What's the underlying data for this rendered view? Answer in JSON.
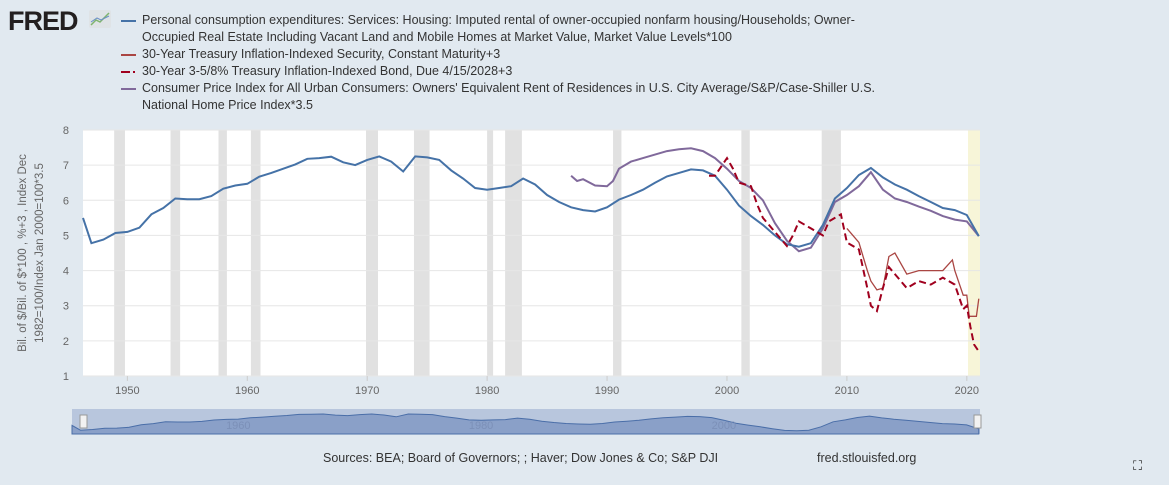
{
  "logo": "FRED",
  "legend": [
    {
      "lines": [
        "Personal consumption expenditures: Services: Housing: Imputed rental of owner-occupied nonfarm housing/Households; Owner-",
        "Occupied Real Estate Including Vacant Land and Mobile Homes at Market Value, Market Value Levels*100"
      ],
      "color": "#4572a7",
      "dash": false
    },
    {
      "lines": [
        "30-Year Treasury Inflation-Indexed Security, Constant Maturity+3"
      ],
      "color": "#aa4643",
      "dash": false
    },
    {
      "lines": [
        "30-Year 3-5/8% Treasury Inflation-Indexed Bond, Due 4/15/2028+3"
      ],
      "color": "#a0001e",
      "dash": true
    },
    {
      "lines": [
        "Consumer Price Index for All Urban Consumers: Owners' Equivalent Rent of Residences in U.S. City Average/S&P/Case-Shiller U.S.",
        "National Home Price Index*3.5"
      ],
      "color": "#80699b",
      "dash": false
    }
  ],
  "footer": {
    "sources": "Sources: BEA; Board of Governors; ; Haver; Dow Jones & Co; S&P DJI",
    "site": "fred.stlouisfed.org",
    "fullscreen_icon": "⛶"
  },
  "chart_data": {
    "type": "line",
    "ylabel_lines": [
      "Bil. of $/Bil. of $*100 , %+3 , Index Dec",
      "1982=100/Index Jan 2000=100*3.5"
    ],
    "ylim": [
      1,
      8
    ],
    "xlim": [
      1946.3,
      2021.1
    ],
    "yticks": [
      1,
      2,
      3,
      4,
      5,
      6,
      7,
      8
    ],
    "xticks": [
      1950,
      1960,
      1970,
      1980,
      1990,
      2000,
      2010,
      2020
    ],
    "navigator_labels": [
      1960,
      1980,
      2000
    ],
    "recessions": [
      [
        1948.9,
        1949.8
      ],
      [
        1953.6,
        1954.4
      ],
      [
        1957.6,
        1958.3
      ],
      [
        1960.3,
        1961.1
      ],
      [
        1969.9,
        1970.9
      ],
      [
        1973.9,
        1975.2
      ],
      [
        1980.0,
        1980.5
      ],
      [
        1981.5,
        1982.9
      ],
      [
        1990.5,
        1991.2
      ],
      [
        2001.2,
        2001.9
      ],
      [
        2007.9,
        2009.5
      ]
    ],
    "highlight": [
      2020.1,
      2021.1
    ],
    "series": [
      {
        "name": "PCE housing imputed rental / Households *100",
        "color": "#4572a7",
        "dash": false,
        "x": [
          1946.3,
          1947,
          1948,
          1949,
          1950,
          1951,
          1952,
          1953,
          1954,
          1955,
          1956,
          1957,
          1958,
          1959,
          1960,
          1961,
          1962,
          1963,
          1964,
          1965,
          1966,
          1967,
          1968,
          1969,
          1970,
          1971,
          1972,
          1973,
          1974,
          1975,
          1976,
          1977,
          1978,
          1979,
          1980,
          1981,
          1982,
          1983,
          1984,
          1985,
          1986,
          1987,
          1988,
          1989,
          1990,
          1991,
          1992,
          1993,
          1994,
          1995,
          1996,
          1997,
          1998,
          1999,
          2000,
          2001,
          2002,
          2003,
          2004,
          2005,
          2006,
          2007,
          2008,
          2009,
          2010,
          2011,
          2012,
          2013,
          2014,
          2015,
          2016,
          2017,
          2018,
          2019,
          2020,
          2021
        ],
        "y": [
          5.5,
          4.78,
          4.88,
          5.07,
          5.1,
          5.22,
          5.6,
          5.78,
          6.05,
          6.03,
          6.03,
          6.12,
          6.33,
          6.42,
          6.47,
          6.67,
          6.78,
          6.9,
          7.02,
          7.18,
          7.2,
          7.24,
          7.08,
          7.0,
          7.15,
          7.25,
          7.1,
          6.82,
          7.25,
          7.22,
          7.15,
          6.85,
          6.62,
          6.35,
          6.3,
          6.35,
          6.4,
          6.62,
          6.45,
          6.15,
          5.95,
          5.8,
          5.72,
          5.68,
          5.8,
          6.02,
          6.15,
          6.3,
          6.5,
          6.68,
          6.78,
          6.88,
          6.85,
          6.7,
          6.3,
          5.85,
          5.55,
          5.3,
          5.0,
          4.75,
          4.68,
          4.78,
          5.3,
          6.05,
          6.35,
          6.72,
          6.92,
          6.65,
          6.45,
          6.3,
          6.12,
          5.95,
          5.78,
          5.72,
          5.58,
          4.98
        ]
      },
      {
        "name": "OER / Case-Shiller *3.5",
        "color": "#80699b",
        "dash": false,
        "x": [
          1987,
          1987.5,
          1988,
          1989,
          1990,
          1990.5,
          1991,
          1992,
          1993,
          1994,
          1995,
          1996,
          1997,
          1998,
          1999,
          2000,
          2001,
          2002,
          2003,
          2004,
          2005,
          2006,
          2007,
          2008,
          2009,
          2010,
          2011,
          2012,
          2013,
          2014,
          2015,
          2016,
          2017,
          2018,
          2019,
          2020,
          2021
        ],
        "y": [
          6.7,
          6.55,
          6.6,
          6.42,
          6.4,
          6.55,
          6.9,
          7.1,
          7.2,
          7.3,
          7.4,
          7.45,
          7.48,
          7.4,
          7.2,
          6.9,
          6.55,
          6.35,
          6.0,
          5.35,
          4.85,
          4.55,
          4.65,
          5.2,
          5.95,
          6.15,
          6.4,
          6.8,
          6.3,
          6.05,
          5.95,
          5.82,
          5.7,
          5.55,
          5.45,
          5.4,
          4.98
        ]
      },
      {
        "name": "30Y TIPS constant maturity +3",
        "color": "#aa4643",
        "dash": false,
        "x": [
          2010,
          2011,
          2011.7,
          2012,
          2012.5,
          2013,
          2013.5,
          2014,
          2015,
          2016,
          2017,
          2018,
          2018.8,
          2019,
          2019.7,
          2020,
          2020.2,
          2020.8,
          2021
        ],
        "y": [
          5.2,
          4.8,
          4.0,
          3.7,
          3.45,
          3.5,
          4.4,
          4.5,
          3.9,
          4.0,
          4.0,
          4.0,
          4.3,
          4.0,
          3.3,
          3.3,
          2.7,
          2.7,
          3.2
        ]
      },
      {
        "name": "30Y 3-5/8% TIPS 2028 +3",
        "color": "#a0001e",
        "dash": true,
        "x": [
          1998.5,
          1999,
          2000,
          2000.5,
          2001,
          2002,
          2002.5,
          2003,
          2004,
          2005,
          2005.5,
          2006,
          2007,
          2008,
          2008.5,
          2009,
          2009.5,
          2010,
          2011,
          2011.7,
          2012,
          2012.5,
          2013,
          2013.5,
          2014,
          2015,
          2016,
          2017,
          2018,
          2019,
          2019.7,
          2020,
          2020.3,
          2020.6,
          2021
        ],
        "y": [
          6.7,
          6.7,
          7.2,
          6.9,
          6.5,
          6.4,
          5.9,
          5.5,
          5.1,
          4.7,
          5.0,
          5.4,
          5.2,
          5.0,
          5.4,
          5.5,
          5.6,
          4.8,
          4.6,
          3.5,
          3.0,
          2.85,
          3.5,
          4.1,
          3.9,
          3.5,
          3.7,
          3.6,
          3.8,
          3.6,
          2.9,
          3.0,
          2.4,
          1.9,
          1.7
        ]
      }
    ]
  }
}
